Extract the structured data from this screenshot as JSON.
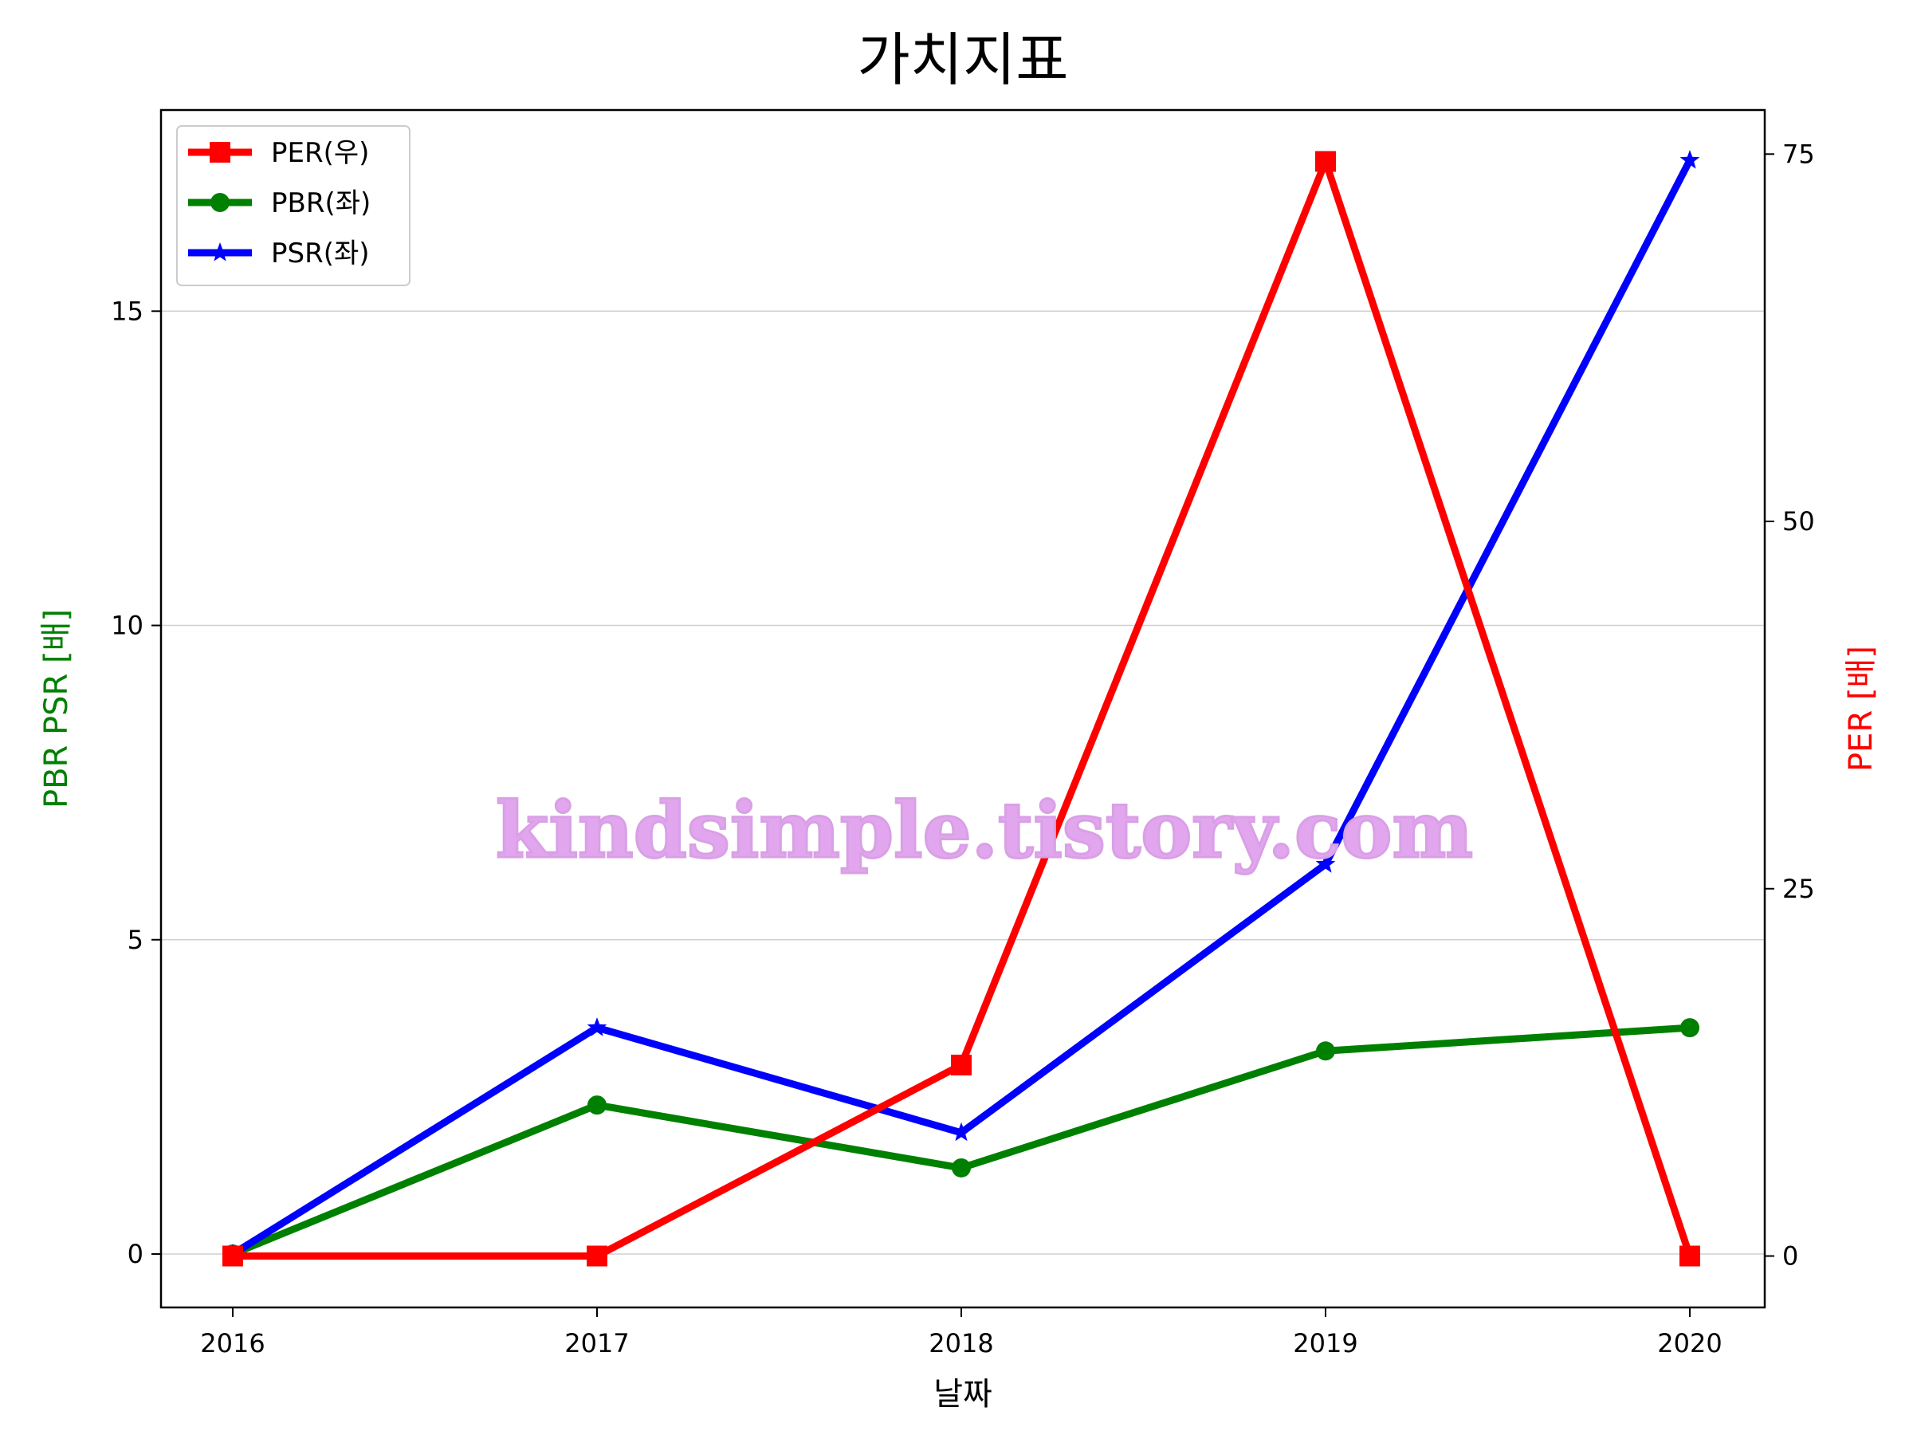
{
  "chart_data": {
    "type": "line",
    "title": "가치지표",
    "xlabel": "날짜",
    "ylabel_left": "PBR PSR [배]",
    "ylabel_right": "PER [배]",
    "categories": [
      "2016",
      "2017",
      "2018",
      "2019",
      "2020"
    ],
    "ylim_left": [
      -0.85,
      18.2
    ],
    "ylim_right": [
      -3.5,
      78
    ],
    "yticks_left": [
      0,
      5,
      10,
      15
    ],
    "yticks_right": [
      0,
      25,
      50,
      75
    ],
    "grid": "horizontal",
    "legend_position": "top-left",
    "series": [
      {
        "name": "PER(우)",
        "axis": "right",
        "color": "#ff0000",
        "marker": "square",
        "values": [
          0,
          0,
          13,
          74.5,
          0
        ]
      },
      {
        "name": "PBR(좌)",
        "axis": "left",
        "color": "#008000",
        "marker": "circle",
        "values": [
          0,
          2.37,
          1.37,
          3.23,
          3.6
        ]
      },
      {
        "name": "PSR(좌)",
        "axis": "left",
        "color": "#0000ff",
        "marker": "star",
        "values": [
          0,
          3.6,
          1.93,
          6.2,
          17.4
        ]
      }
    ]
  },
  "watermark": {
    "text": "kindsimple.tistory.com",
    "color": "#e1a6ee"
  }
}
